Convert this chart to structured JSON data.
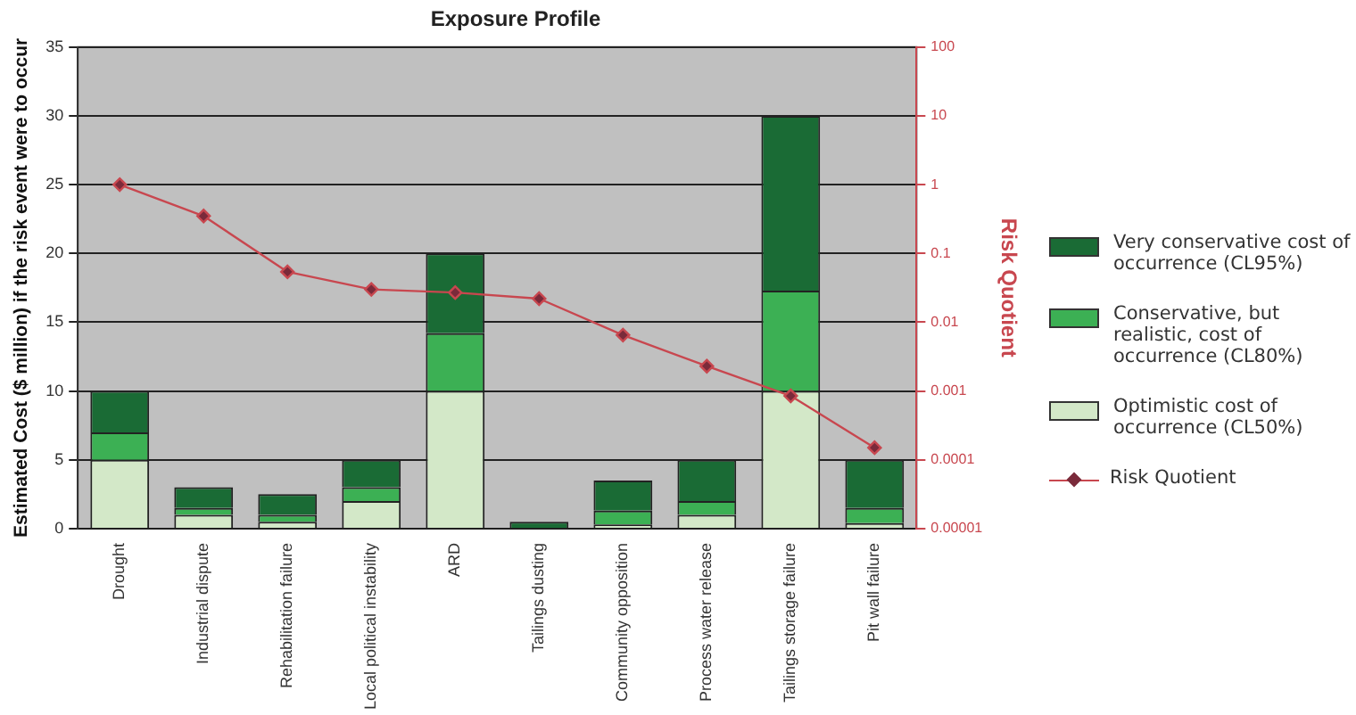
{
  "chart_data": {
    "type": "bar",
    "title": "Exposure Profile",
    "ylabel": "Estimated Cost ($ million) if the risk event were to occur",
    "y2label": "Risk Quotient",
    "categories": [
      "Drought",
      "Industrial dispute",
      "Rehabilitation failure",
      "Local political instability",
      "ARD",
      "Tailings dusting",
      "Community opposition",
      "Process water release",
      "Tailings storage failure",
      "Pit wall failure"
    ],
    "stacked": true,
    "series": [
      {
        "name": "Optimistic cost of occurrence (CL50%)",
        "color": "#d3e8c8",
        "values": [
          5,
          1,
          0.5,
          2,
          10,
          0,
          0.3,
          1,
          10,
          0.4
        ]
      },
      {
        "name": "Conservative, but realistic, cost of occurrence (CL80%)",
        "color": "#3cb054",
        "values": [
          2,
          0.5,
          0.5,
          1,
          4.2,
          0,
          1,
          1,
          7.3,
          1.1
        ]
      },
      {
        "name": "Very conservative cost of occurrence (CL95%)",
        "color": "#1a6b35",
        "values": [
          3,
          1.5,
          1.5,
          2,
          5.8,
          0.5,
          2.2,
          3,
          12.7,
          3.5
        ]
      },
      {
        "name": "Risk Quotient",
        "type": "line",
        "axis": "y2",
        "color": "#c8474f",
        "values": [
          1.0,
          0.35,
          0.054,
          0.03,
          0.027,
          0.022,
          0.0065,
          0.0023,
          0.00085,
          0.00015
        ]
      }
    ],
    "ylim": [
      0,
      35
    ],
    "yticks": [
      0,
      5,
      10,
      15,
      20,
      25,
      30,
      35
    ],
    "y2lim": [
      1e-05,
      100
    ],
    "y2ticks": [
      {
        "value": 1e-05,
        "label": "0.00001"
      },
      0.0001,
      0.001,
      0.01,
      0.1,
      1,
      10,
      100
    ],
    "log": "y2",
    "grid": "y",
    "legend": "right",
    "marker": "diamond"
  }
}
